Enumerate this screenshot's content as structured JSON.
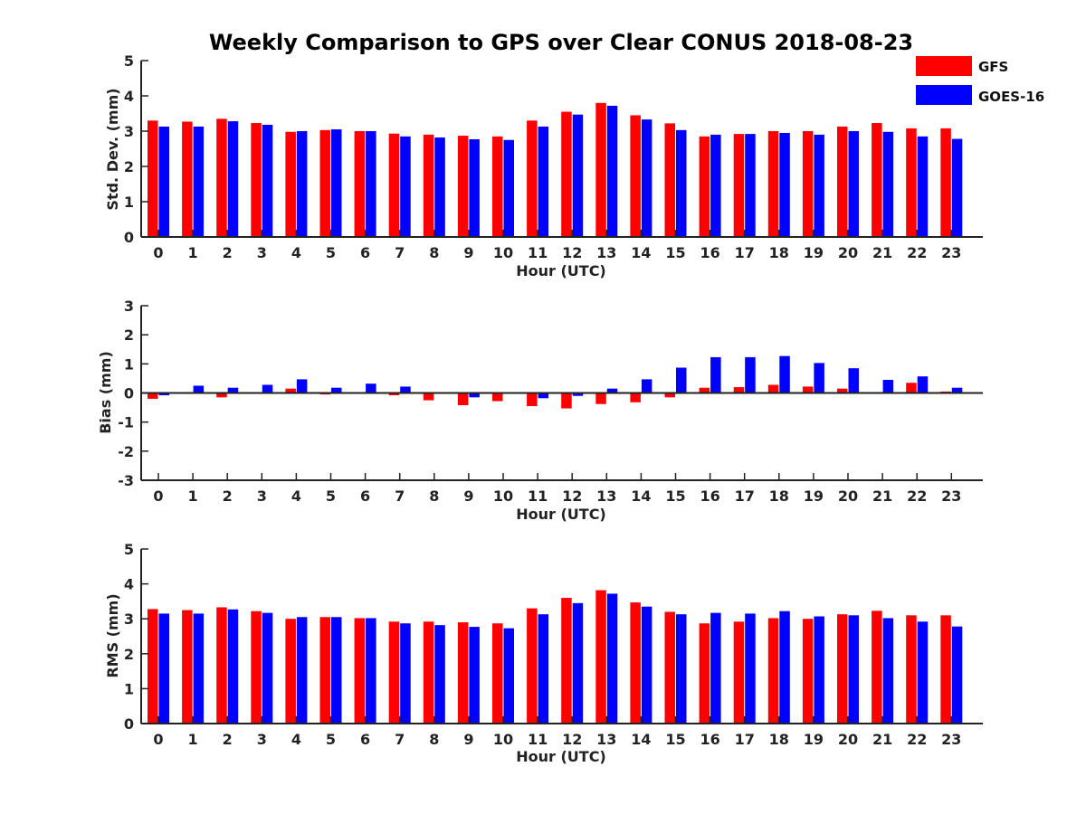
{
  "chart_data": {
    "type": "bar",
    "title": "Weekly Comparison to GPS over Clear CONUS 2018-08-23",
    "colors": {
      "GFS": "#ff0000",
      "GOES-16": "#0000ff"
    },
    "legend": {
      "position": "top-right",
      "entries": [
        "GFS",
        "GOES-16"
      ]
    },
    "categories": [
      "0",
      "1",
      "2",
      "3",
      "4",
      "5",
      "6",
      "7",
      "8",
      "9",
      "10",
      "11",
      "12",
      "13",
      "14",
      "15",
      "16",
      "17",
      "18",
      "19",
      "20",
      "21",
      "22",
      "23"
    ],
    "panels": [
      {
        "id": "std",
        "ylabel": "Std. Dev. (mm)",
        "xlabel": "Hour (UTC)",
        "ylim": [
          0,
          5
        ],
        "yticks": [
          "0",
          "1",
          "2",
          "3",
          "4",
          "5"
        ],
        "series": [
          {
            "name": "GFS",
            "values": [
              3.3,
              3.27,
              3.35,
              3.23,
              2.98,
              3.03,
              3.0,
              2.93,
              2.9,
              2.87,
              2.85,
              3.3,
              3.55,
              3.8,
              3.45,
              3.22,
              2.85,
              2.92,
              3.0,
              3.0,
              3.13,
              3.23,
              3.08,
              3.08
            ]
          },
          {
            "name": "GOES-16",
            "values": [
              3.13,
              3.13,
              3.28,
              3.18,
              3.0,
              3.05,
              3.0,
              2.85,
              2.82,
              2.77,
              2.75,
              3.13,
              3.47,
              3.72,
              3.33,
              3.03,
              2.9,
              2.92,
              2.95,
              2.9,
              3.0,
              2.98,
              2.85,
              2.78
            ]
          }
        ]
      },
      {
        "id": "bias",
        "ylabel": "Bias (mm)",
        "xlabel": "Hour (UTC)",
        "ylim": [
          -3,
          3
        ],
        "yticks": [
          "-3",
          "-2",
          "-1",
          "0",
          "1",
          "2",
          "3"
        ],
        "series": [
          {
            "name": "GFS",
            "values": [
              -0.2,
              0.0,
              -0.15,
              -0.03,
              0.15,
              -0.05,
              0.03,
              -0.08,
              -0.25,
              -0.42,
              -0.28,
              -0.45,
              -0.53,
              -0.38,
              -0.32,
              -0.15,
              0.18,
              0.2,
              0.28,
              0.22,
              0.15,
              0.0,
              0.35,
              0.05
            ]
          },
          {
            "name": "GOES-16",
            "values": [
              -0.08,
              0.25,
              0.18,
              0.28,
              0.47,
              0.18,
              0.32,
              0.22,
              0.03,
              -0.15,
              0.0,
              -0.18,
              -0.1,
              0.15,
              0.47,
              0.87,
              1.23,
              1.23,
              1.27,
              1.03,
              0.85,
              0.45,
              0.57,
              0.18
            ]
          }
        ]
      },
      {
        "id": "rms",
        "ylabel": "RMS (mm)",
        "xlabel": "Hour (UTC)",
        "ylim": [
          0,
          5
        ],
        "yticks": [
          "0",
          "1",
          "2",
          "3",
          "4",
          "5"
        ],
        "series": [
          {
            "name": "GFS",
            "values": [
              3.28,
              3.25,
              3.33,
              3.22,
              3.0,
              3.05,
              3.02,
              2.92,
              2.92,
              2.9,
              2.87,
              3.3,
              3.6,
              3.82,
              3.47,
              3.2,
              2.87,
              2.92,
              3.02,
              3.0,
              3.13,
              3.23,
              3.1,
              3.1
            ]
          },
          {
            "name": "GOES-16",
            "values": [
              3.15,
              3.15,
              3.27,
              3.17,
              3.05,
              3.05,
              3.02,
              2.87,
              2.82,
              2.77,
              2.73,
              3.13,
              3.45,
              3.72,
              3.35,
              3.13,
              3.17,
              3.15,
              3.22,
              3.07,
              3.1,
              3.02,
              2.92,
              2.78
            ]
          }
        ]
      }
    ]
  }
}
